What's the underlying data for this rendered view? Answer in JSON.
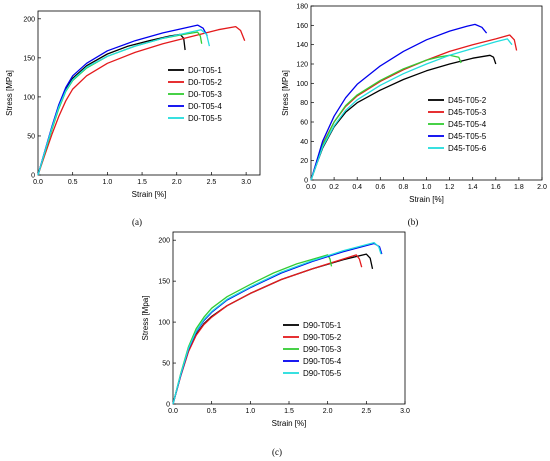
{
  "figure_labels": [
    "(a)",
    "(b)",
    "(c)"
  ],
  "chart_data": [
    {
      "type": "line",
      "caption": "(a)",
      "xlabel": "Strain [%]",
      "ylabel": "Stress [MPa]",
      "xlim": [
        0,
        3.2
      ],
      "ylim": [
        0,
        210
      ],
      "xticks": [
        "0.0",
        "0.5",
        "1.0",
        "1.5",
        "2.0",
        "2.5",
        "3.0"
      ],
      "yticks": [
        "0",
        "50",
        "100",
        "150",
        "200"
      ],
      "legend_position": "center-right",
      "series": [
        {
          "name": "D0-T05-1",
          "color": "#000000",
          "x": [
            0,
            0.1,
            0.2,
            0.3,
            0.4,
            0.5,
            0.7,
            1.0,
            1.3,
            1.6,
            1.9,
            2.05,
            2.1,
            2.12
          ],
          "y": [
            0,
            30,
            60,
            88,
            110,
            124,
            140,
            155,
            165,
            172,
            178,
            180,
            175,
            160
          ]
        },
        {
          "name": "D0-T05-2",
          "color": "#e41a1c",
          "x": [
            0,
            0.1,
            0.2,
            0.3,
            0.4,
            0.5,
            0.7,
            1.0,
            1.4,
            1.8,
            2.2,
            2.6,
            2.85,
            2.92,
            2.98
          ],
          "y": [
            0,
            26,
            52,
            75,
            95,
            110,
            127,
            143,
            157,
            168,
            177,
            186,
            190,
            185,
            172
          ]
        },
        {
          "name": "D0-T05-3",
          "color": "#33cc33",
          "x": [
            0,
            0.1,
            0.2,
            0.3,
            0.4,
            0.5,
            0.7,
            1.0,
            1.4,
            1.8,
            2.1,
            2.3,
            2.34,
            2.36
          ],
          "y": [
            0,
            29,
            58,
            85,
            107,
            121,
            137,
            152,
            165,
            175,
            180,
            183,
            178,
            168
          ]
        },
        {
          "name": "D0-T05-4",
          "color": "#0000ee",
          "x": [
            0,
            0.1,
            0.2,
            0.3,
            0.4,
            0.5,
            0.7,
            1.0,
            1.4,
            1.8,
            2.1,
            2.3,
            2.38,
            2.44
          ],
          "y": [
            0,
            31,
            62,
            90,
            112,
            127,
            143,
            159,
            172,
            182,
            188,
            192,
            188,
            178
          ]
        },
        {
          "name": "D0-T05-5",
          "color": "#22dddd",
          "x": [
            0,
            0.1,
            0.2,
            0.3,
            0.4,
            0.5,
            0.7,
            1.0,
            1.4,
            1.8,
            2.1,
            2.35,
            2.43,
            2.47
          ],
          "y": [
            0,
            30,
            60,
            87,
            108,
            122,
            138,
            152,
            165,
            175,
            181,
            186,
            180,
            165
          ]
        }
      ]
    },
    {
      "type": "line",
      "caption": "(b)",
      "xlabel": "Strain [%]",
      "ylabel": "Stress [MPa]",
      "xlim": [
        0,
        2.0
      ],
      "ylim": [
        0,
        180
      ],
      "xticks": [
        "0.0",
        "0.2",
        "0.4",
        "0.6",
        "0.8",
        "1.0",
        "1.2",
        "1.4",
        "1.6",
        "1.8",
        "2.0"
      ],
      "yticks": [
        "0",
        "20",
        "40",
        "60",
        "80",
        "100",
        "120",
        "140",
        "160",
        "180"
      ],
      "legend_position": "bottom-right",
      "series": [
        {
          "name": "D45-T05-2",
          "color": "#000000",
          "x": [
            0,
            0.05,
            0.1,
            0.2,
            0.3,
            0.4,
            0.6,
            0.8,
            1.0,
            1.2,
            1.4,
            1.55,
            1.58,
            1.6
          ],
          "y": [
            0,
            17,
            33,
            55,
            70,
            80,
            93,
            104,
            113,
            120,
            126,
            129,
            127,
            120
          ]
        },
        {
          "name": "D45-T05-3",
          "color": "#e41a1c",
          "x": [
            0,
            0.05,
            0.1,
            0.2,
            0.3,
            0.4,
            0.6,
            0.8,
            1.0,
            1.2,
            1.4,
            1.6,
            1.72,
            1.76,
            1.78
          ],
          "y": [
            0,
            19,
            37,
            60,
            76,
            87,
            102,
            114,
            124,
            133,
            140,
            146,
            150,
            145,
            134
          ]
        },
        {
          "name": "D45-T05-4",
          "color": "#33cc33",
          "x": [
            0,
            0.05,
            0.1,
            0.2,
            0.3,
            0.4,
            0.6,
            0.8,
            1.0,
            1.1,
            1.2,
            1.28,
            1.3
          ],
          "y": [
            0,
            18,
            36,
            60,
            77,
            88,
            103,
            115,
            124,
            127,
            129,
            127,
            121
          ]
        },
        {
          "name": "D45-T05-5",
          "color": "#0000ee",
          "x": [
            0,
            0.05,
            0.1,
            0.2,
            0.3,
            0.4,
            0.6,
            0.8,
            1.0,
            1.2,
            1.35,
            1.42,
            1.48,
            1.52
          ],
          "y": [
            0,
            20,
            40,
            66,
            85,
            99,
            118,
            133,
            145,
            154,
            159,
            161,
            158,
            152
          ]
        },
        {
          "name": "D45-T05-6",
          "color": "#22dddd",
          "x": [
            0,
            0.05,
            0.1,
            0.2,
            0.3,
            0.4,
            0.6,
            0.8,
            1.0,
            1.2,
            1.4,
            1.6,
            1.7,
            1.74
          ],
          "y": [
            0,
            17,
            34,
            56,
            72,
            83,
            98,
            110,
            120,
            129,
            136,
            143,
            146,
            140
          ]
        }
      ]
    },
    {
      "type": "line",
      "caption": "(c)",
      "xlabel": "Strain [%]",
      "ylabel": "Stress [Mpa]",
      "xlim": [
        0,
        3.0
      ],
      "ylim": [
        0,
        210
      ],
      "xticks": [
        "0.0",
        "0.5",
        "1.0",
        "1.5",
        "2.0",
        "2.5",
        "3.0"
      ],
      "yticks": [
        "0",
        "50",
        "100",
        "150",
        "200"
      ],
      "legend_position": "bottom-right",
      "series": [
        {
          "name": "D90-T05-1",
          "color": "#000000",
          "x": [
            0,
            0.1,
            0.2,
            0.3,
            0.4,
            0.5,
            0.7,
            1.0,
            1.4,
            1.8,
            2.2,
            2.5,
            2.55,
            2.58
          ],
          "y": [
            0,
            35,
            65,
            85,
            98,
            107,
            120,
            135,
            152,
            165,
            176,
            183,
            178,
            165
          ]
        },
        {
          "name": "D90-T05-2",
          "color": "#e41a1c",
          "x": [
            0,
            0.1,
            0.2,
            0.3,
            0.4,
            0.5,
            0.7,
            1.0,
            1.4,
            1.8,
            2.1,
            2.37,
            2.41,
            2.44
          ],
          "y": [
            0,
            34,
            64,
            84,
            97,
            106,
            120,
            135,
            152,
            165,
            174,
            182,
            177,
            167
          ]
        },
        {
          "name": "D90-T05-3",
          "color": "#33cc33",
          "x": [
            0,
            0.1,
            0.2,
            0.3,
            0.4,
            0.5,
            0.7,
            1.0,
            1.3,
            1.6,
            1.85,
            2.0,
            2.03,
            2.05
          ],
          "y": [
            0,
            37,
            70,
            92,
            106,
            117,
            131,
            146,
            160,
            171,
            178,
            182,
            177,
            168
          ]
        },
        {
          "name": "D90-T05-4",
          "color": "#0000ee",
          "x": [
            0,
            0.1,
            0.2,
            0.3,
            0.4,
            0.5,
            0.7,
            1.0,
            1.4,
            1.8,
            2.2,
            2.6,
            2.67,
            2.7
          ],
          "y": [
            0,
            35,
            67,
            88,
            102,
            112,
            127,
            142,
            160,
            174,
            186,
            196,
            192,
            183
          ]
        },
        {
          "name": "D90-T05-5",
          "color": "#22dddd",
          "x": [
            0,
            0.1,
            0.2,
            0.3,
            0.4,
            0.5,
            0.7,
            1.0,
            1.4,
            1.8,
            2.2,
            2.6,
            2.66,
            2.69
          ],
          "y": [
            0,
            36,
            68,
            89,
            103,
            113,
            128,
            143,
            161,
            175,
            187,
            197,
            192,
            183
          ]
        }
      ]
    }
  ]
}
